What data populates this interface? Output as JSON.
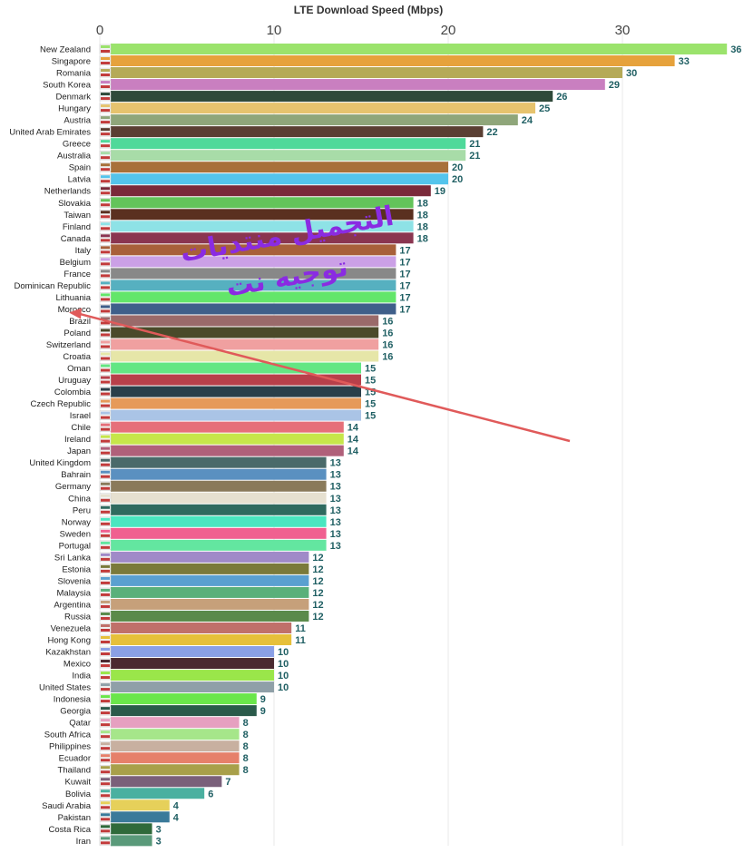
{
  "chart_data": {
    "type": "bar",
    "orientation": "horizontal",
    "title": "LTE Download Speed (Mbps)",
    "xlim": [
      0,
      36
    ],
    "xticks": [
      "0",
      "10",
      "20",
      "30"
    ],
    "grid": true,
    "categories": [
      "New Zealand",
      "Singapore",
      "Romania",
      "South Korea",
      "Denmark",
      "Hungary",
      "Austria",
      "United Arab Emirates",
      "Greece",
      "Australia",
      "Spain",
      "Latvia",
      "Netherlands",
      "Slovakia",
      "Taiwan",
      "Finland",
      "Canada",
      "Italy",
      "Belgium",
      "France",
      "Dominican Republic",
      "Lithuania",
      "Morocco",
      "Brazil",
      "Poland",
      "Switzerland",
      "Croatia",
      "Oman",
      "Uruguay",
      "Colombia",
      "Czech Republic",
      "Israel",
      "Chile",
      "Ireland",
      "Japan",
      "United Kingdom",
      "Bahrain",
      "Germany",
      "China",
      "Peru",
      "Norway",
      "Sweden",
      "Portugal",
      "Sri Lanka",
      "Estonia",
      "Slovenia",
      "Malaysia",
      "Argentina",
      "Russia",
      "Venezuela",
      "Hong Kong",
      "Kazakhstan",
      "Mexico",
      "India",
      "United States",
      "Indonesia",
      "Georgia",
      "Qatar",
      "South Africa",
      "Philippines",
      "Ecuador",
      "Thailand",
      "Kuwait",
      "Bolivia",
      "Saudi Arabia",
      "Pakistan",
      "Costa Rica",
      "Iran"
    ],
    "values": [
      36,
      33,
      30,
      29,
      26,
      25,
      24,
      22,
      21,
      21,
      20,
      20,
      19,
      18,
      18,
      18,
      18,
      17,
      17,
      17,
      17,
      17,
      17,
      16,
      16,
      16,
      16,
      15,
      15,
      15,
      15,
      15,
      14,
      14,
      14,
      13,
      13,
      13,
      13,
      13,
      13,
      13,
      13,
      12,
      12,
      12,
      12,
      12,
      12,
      11,
      11,
      10,
      10,
      10,
      10,
      9,
      9,
      8,
      8,
      8,
      8,
      8,
      7,
      6,
      4,
      4,
      3,
      3
    ],
    "value_labels": [
      "36",
      "33",
      "30",
      "29",
      "26",
      "25",
      "24",
      "22",
      "21",
      "21",
      "20",
      "20",
      "19",
      "18",
      "18",
      "18",
      "18",
      "17",
      "17",
      "17",
      "17",
      "17",
      "17",
      "16",
      "16",
      "16",
      "16",
      "15",
      "15",
      "15",
      "15",
      "15",
      "14",
      "14",
      "14",
      "13",
      "13",
      "13",
      "13",
      "13",
      "13",
      "13",
      "13",
      "12",
      "12",
      "12",
      "12",
      "12",
      "12",
      "11",
      "11",
      "10",
      "10",
      "10",
      "10",
      "9",
      "9",
      "8",
      "8",
      "8",
      "8",
      "8",
      "7",
      "6",
      "4",
      "4",
      "3",
      "3"
    ],
    "bar_colors": [
      "#9be36c",
      "#e6a23c",
      "#b5aa57",
      "#c97fc0",
      "#2f4a3a",
      "#e6c36e",
      "#8fa67a",
      "#5a3f33",
      "#4fd99a",
      "#a8dca8",
      "#a8703a",
      "#54c4ec",
      "#7a2a3a",
      "#63c45a",
      "#5a3020",
      "#8ee2e6",
      "#8a3550",
      "#a8603a",
      "#cba0e6",
      "#888888",
      "#56b0c0",
      "#63e66a",
      "#3f5f8a",
      "#9a6a6a",
      "#4a4a2a",
      "#f0a0a0",
      "#e6e6a8",
      "#63e683",
      "#b83f4a",
      "#2a3f4a",
      "#e69a5a",
      "#aac4e6",
      "#e6707a",
      "#c6e64a",
      "#b0607a",
      "#4a6a6a",
      "#5a90c0",
      "#8a7a5a",
      "#e6e0d0",
      "#2f6a5f",
      "#4ae6c0",
      "#f06090",
      "#63e6a0",
      "#a08ac8",
      "#7a7a3a",
      "#5aa0d0",
      "#5ab07a",
      "#c6a07a",
      "#5a8a4a",
      "#c0706a",
      "#e6c03a",
      "#8aa0e6",
      "#4a2a30",
      "#9ae64a",
      "#90a0a8",
      "#6ae64a",
      "#2a5a4a",
      "#e6a0c0",
      "#a6e68a",
      "#c8b0a0",
      "#e6806a",
      "#a8a04a",
      "#7a607a",
      "#4ab0a0",
      "#e6d05a",
      "#3a7a9a",
      "#2f6a3a",
      "#5a9a7a"
    ],
    "watermark": [
      "التجميل منتديات",
      "توجيه نت"
    ]
  }
}
